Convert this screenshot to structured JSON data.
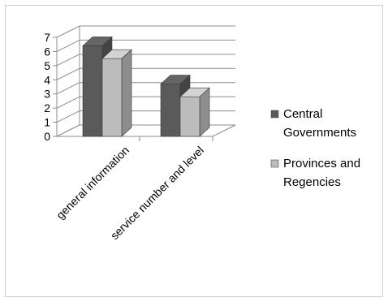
{
  "chart_data": {
    "type": "bar",
    "categories": [
      "general information",
      "service number and level"
    ],
    "series": [
      {
        "name": "Central Governments",
        "values": [
          6.4,
          3.7
        ],
        "color": "#5a5a5a"
      },
      {
        "name": "Provinces and Regencies",
        "values": [
          5.5,
          2.8
        ],
        "color": "#bcbcbc"
      }
    ],
    "y_ticks": [
      "0",
      "1",
      "2",
      "3",
      "4",
      "5",
      "6",
      "7"
    ],
    "ylim": [
      0,
      7
    ],
    "grid": true,
    "legend_position": "right",
    "legend": {
      "entries": [
        {
          "lines": [
            "Central",
            "Governments"
          ]
        },
        {
          "lines": [
            "Provinces and",
            "Regencies"
          ]
        }
      ]
    }
  }
}
